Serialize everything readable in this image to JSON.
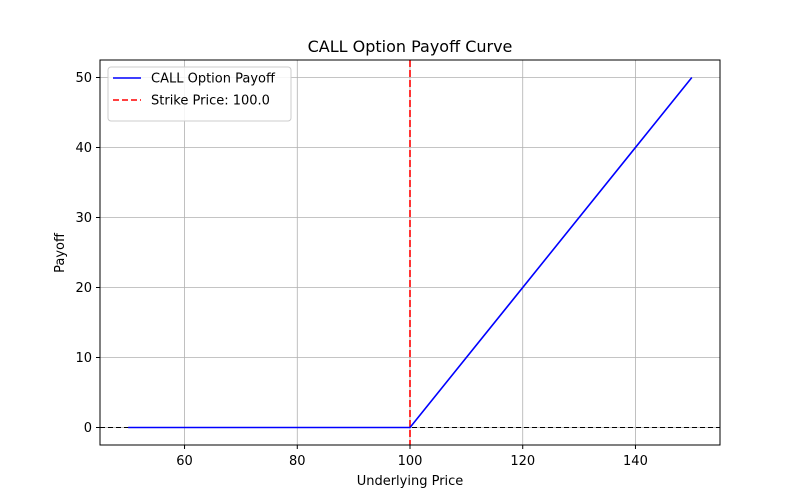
{
  "chart_data": {
    "type": "line",
    "title": "CALL Option Payoff Curve",
    "xlabel": "Underlying Price",
    "ylabel": "Payoff",
    "xlim": [
      45,
      155
    ],
    "ylim": [
      -2.5,
      52.5
    ],
    "xticks": [
      60,
      80,
      100,
      120,
      140
    ],
    "yticks": [
      0,
      10,
      20,
      30,
      40,
      50
    ],
    "grid": true,
    "legend_position": "top-left",
    "series": [
      {
        "name": "CALL Option Payoff",
        "color": "#0000ff",
        "style": "solid",
        "x": [
          50,
          100,
          150
        ],
        "y": [
          0,
          0,
          50
        ]
      }
    ],
    "reference_lines": [
      {
        "name": "Strike Price: 100.0",
        "orientation": "vertical",
        "value": 100,
        "color": "#ff0000",
        "style": "dashed"
      },
      {
        "name": "",
        "orientation": "horizontal",
        "value": 0,
        "color": "#000000",
        "style": "dashed"
      }
    ]
  }
}
